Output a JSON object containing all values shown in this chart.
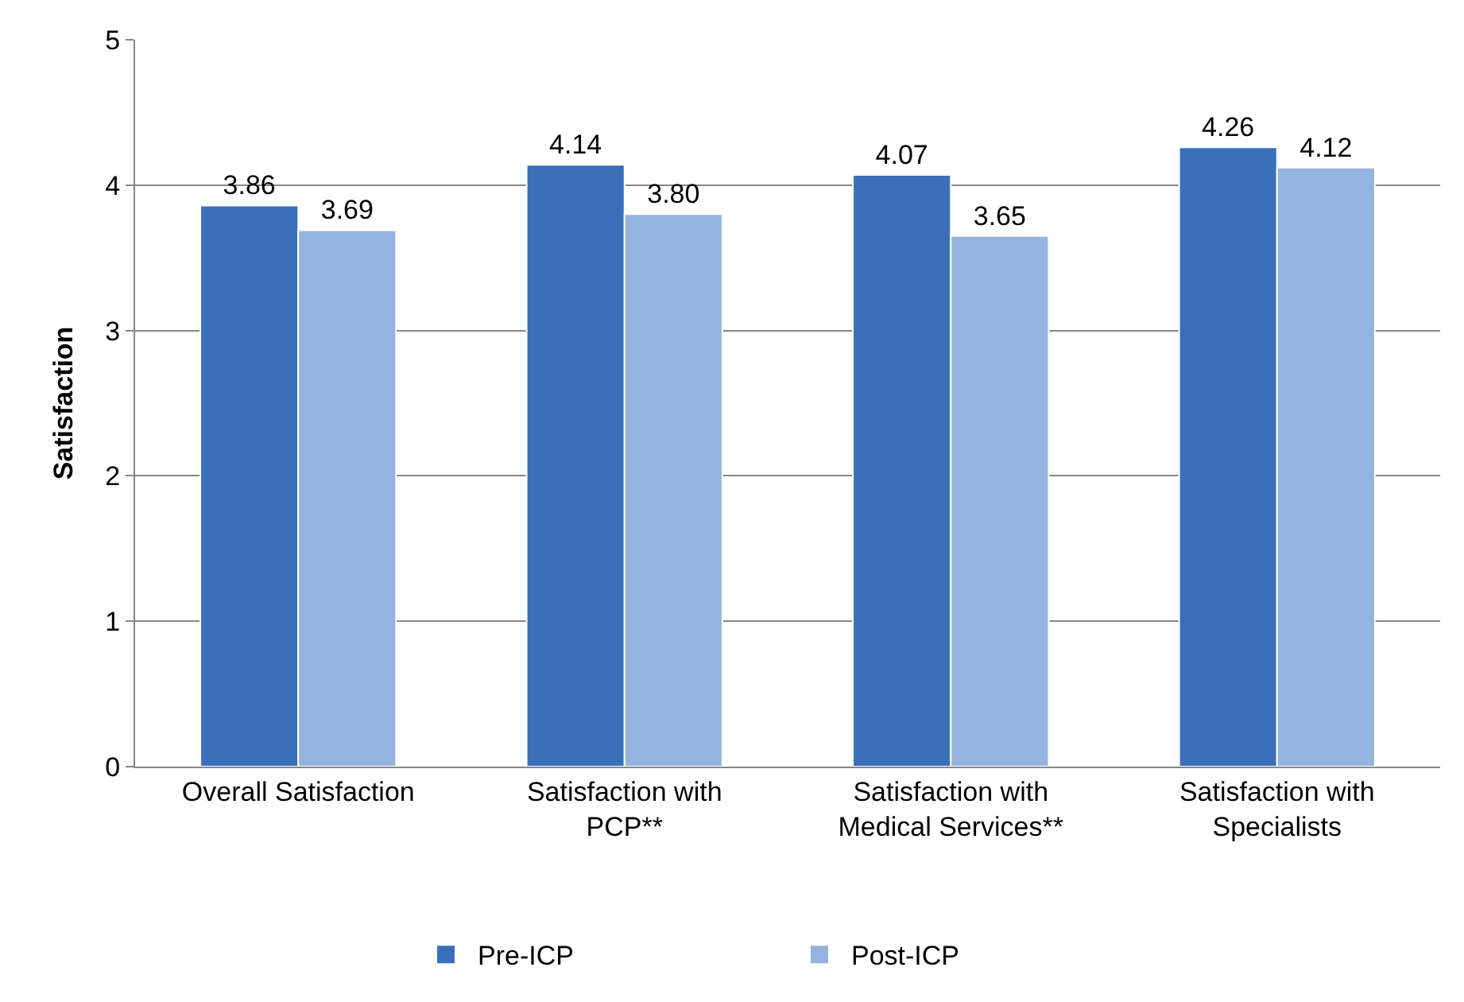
{
  "chart_data": {
    "type": "bar",
    "ylabel": "Satisfaction",
    "categories": [
      "Overall Satisfaction",
      "Satisfaction with PCP**",
      "Satisfaction with Medical Services**",
      "Satisfaction with Specialists"
    ],
    "series": [
      {
        "name": "Pre-ICP",
        "color": "#3b6fba",
        "values": [
          3.86,
          4.14,
          4.07,
          4.26
        ],
        "value_labels": [
          "3.86",
          "4.14",
          "4.07",
          "4.26"
        ]
      },
      {
        "name": "Post-ICP",
        "color": "#95b3df",
        "values": [
          3.69,
          3.8,
          3.65,
          4.12
        ],
        "value_labels": [
          "3.69",
          "3.80",
          "3.65",
          "4.12"
        ]
      }
    ],
    "ylim": [
      0,
      5
    ],
    "yticks": [
      0,
      1,
      2,
      3,
      4,
      5
    ],
    "grid": "y",
    "legend": "bottom"
  }
}
